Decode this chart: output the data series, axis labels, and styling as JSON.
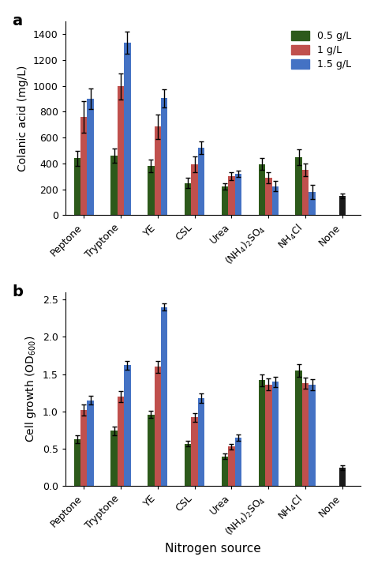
{
  "categories": [
    "Peptone",
    "Tryptone",
    "YE",
    "CSL",
    "Urea",
    "(NH₄)₂SO₄",
    "NH₄Cl",
    "None"
  ],
  "legend_labels": [
    "0.5 g/L",
    "1 g/L",
    "1.5 g/L"
  ],
  "colors": [
    "#2d5a1b",
    "#c0504d",
    "#4472c4"
  ],
  "panel_a": {
    "title": "a",
    "ylabel": "Colanic acid (mg/L)",
    "ylim": [
      0,
      1500
    ],
    "yticks": [
      0,
      200,
      400,
      600,
      800,
      1000,
      1200,
      1400
    ],
    "values": [
      [
        440,
        460,
        380,
        250,
        225,
        395,
        450,
        0
      ],
      [
        760,
        995,
        685,
        395,
        300,
        290,
        350,
        0
      ],
      [
        900,
        1335,
        905,
        520,
        320,
        225,
        180,
        150
      ]
    ],
    "errors": [
      [
        60,
        55,
        50,
        40,
        25,
        45,
        60,
        0
      ],
      [
        120,
        100,
        95,
        60,
        30,
        40,
        50,
        0
      ],
      [
        80,
        85,
        70,
        50,
        25,
        40,
        55,
        20
      ]
    ]
  },
  "panel_b": {
    "title": "b",
    "ylabel": "Cell growth (OD₆₀₀)",
    "ylim": [
      0,
      2.6
    ],
    "yticks": [
      0.0,
      0.5,
      1.0,
      1.5,
      2.0,
      2.5
    ],
    "values": [
      [
        0.63,
        0.74,
        0.96,
        0.57,
        0.4,
        1.42,
        1.55,
        0
      ],
      [
        1.02,
        1.2,
        1.6,
        0.92,
        0.53,
        1.36,
        1.38,
        0
      ],
      [
        1.15,
        1.62,
        2.4,
        1.18,
        0.65,
        1.4,
        1.36,
        0.25
      ]
    ],
    "errors": [
      [
        0.05,
        0.06,
        0.05,
        0.04,
        0.04,
        0.08,
        0.08,
        0
      ],
      [
        0.07,
        0.07,
        0.08,
        0.06,
        0.04,
        0.08,
        0.07,
        0
      ],
      [
        0.06,
        0.06,
        0.05,
        0.06,
        0.04,
        0.07,
        0.07,
        0.03
      ]
    ]
  },
  "xlabel": "Nitrogen source",
  "bar_width": 0.18,
  "none_color": "#1a1a1a"
}
